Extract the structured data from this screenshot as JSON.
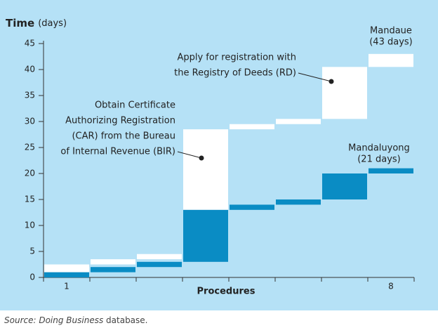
{
  "chart_data": {
    "type": "waterfall",
    "title": "Time",
    "title_unit": "(days)",
    "xlabel": "Procedures",
    "categories": [
      "1",
      null,
      null,
      null,
      null,
      null,
      null,
      "8"
    ],
    "series": [
      {
        "name": "Mandaue",
        "color": "#ffffff",
        "values": [
          2.5,
          1,
          1,
          24,
          1,
          1,
          10,
          2.5
        ],
        "total_label": "(43 days)"
      },
      {
        "name": "Mandaluyong",
        "color": "#0a8cc4",
        "values": [
          1,
          1,
          1,
          10,
          1,
          1,
          5,
          1
        ],
        "total_label": "(21 days)"
      }
    ],
    "ylim": [
      0,
      45
    ],
    "yticks": [
      0,
      5,
      10,
      15,
      20,
      25,
      30,
      35,
      40,
      45
    ],
    "annotations": [
      {
        "lines": [
          "Obtain Certificate",
          "Authorizing Registration",
          "(CAR) from the Bureau",
          "of Internal Revenue (BIR)"
        ]
      },
      {
        "lines": [
          "Apply for registration with",
          "the Registry of Deeds (RD)"
        ]
      }
    ],
    "source": {
      "prefix": "Source: ",
      "italic": "Doing Business",
      "suffix": " database."
    }
  }
}
